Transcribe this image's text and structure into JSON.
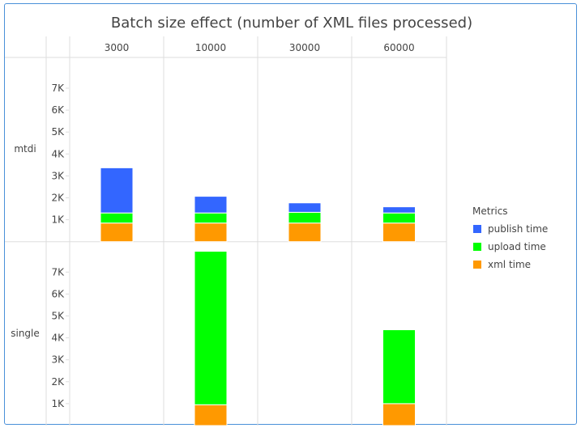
{
  "chart_data": {
    "type": "bar",
    "stacked": true,
    "title": "Batch size effect (number of XML files processed)",
    "columns": [
      "3000",
      "10000",
      "30000",
      "60000"
    ],
    "rows": [
      "mtdi",
      "single"
    ],
    "ylim": [
      0,
      8000
    ],
    "yticks": [
      "1K",
      "2K",
      "3K",
      "4K",
      "5K",
      "6K",
      "7K"
    ],
    "grid": true,
    "legend": {
      "title": "Metrics",
      "placement": "right"
    },
    "series": [
      {
        "name": "xml time",
        "color": "#ff9900",
        "values": {
          "mtdi": [
            850,
            850,
            850,
            850
          ],
          "single": [
            null,
            950,
            null,
            1000
          ]
        }
      },
      {
        "name": "upload time",
        "color": "#00ff00",
        "values": {
          "mtdi": [
            460,
            460,
            490,
            460
          ],
          "single": [
            null,
            7000,
            null,
            3370
          ]
        }
      },
      {
        "name": "publish time",
        "color": "#3366ff",
        "values": {
          "mtdi": [
            2060,
            760,
            430,
            280
          ],
          "single": [
            null,
            null,
            null,
            null
          ]
        }
      }
    ]
  }
}
